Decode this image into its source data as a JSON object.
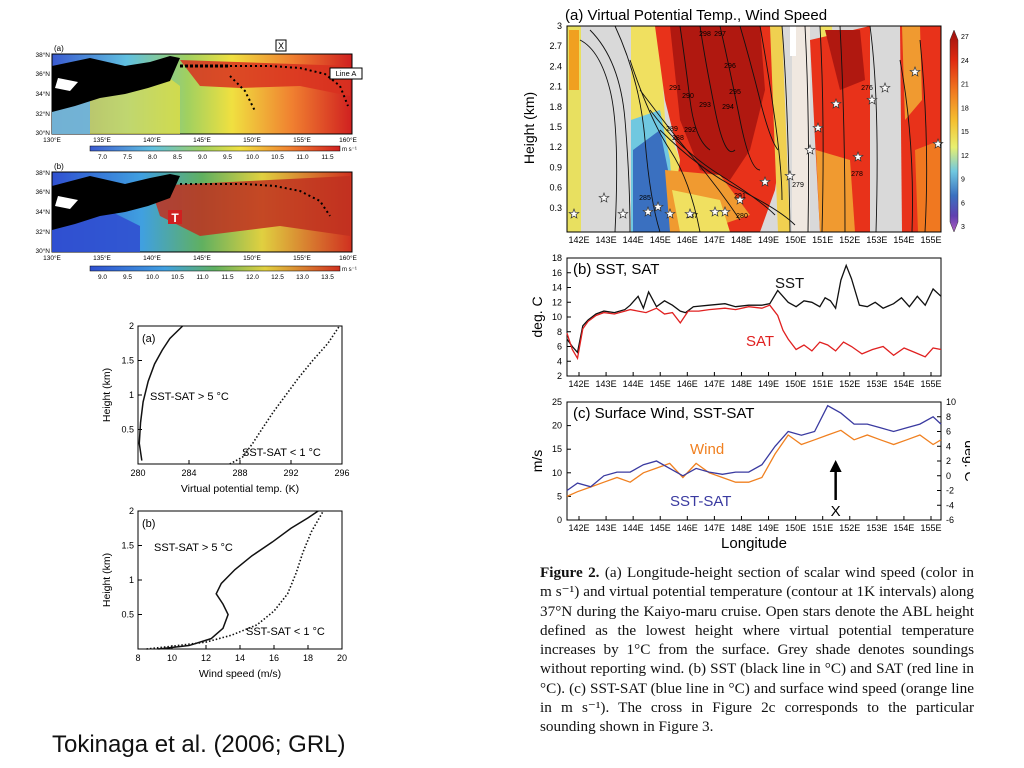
{
  "citation": "Tokinaga et al. (2006; GRL)",
  "maps": {
    "a": {
      "tag": "(a)",
      "lat_labels": [
        "38°N",
        "36°N",
        "34°N",
        "32°N",
        "30°N"
      ],
      "lon_labels": [
        "130°E",
        "135°E",
        "140°E",
        "145°E",
        "150°E",
        "155°E",
        "160°E"
      ],
      "marker_label": "X",
      "line_label": "Line A",
      "colorbar_ticks": [
        "7.0",
        "7.5",
        "8.0",
        "8.5",
        "9.0",
        "9.5",
        "10.0",
        "10.5",
        "11.0",
        "11.5"
      ],
      "colorbar_units": "m s⁻¹"
    },
    "b": {
      "tag": "(b)",
      "lat_labels": [
        "38°N",
        "36°N",
        "34°N",
        "32°N",
        "30°N"
      ],
      "lon_labels": [
        "130°E",
        "135°E",
        "140°E",
        "145°E",
        "150°E",
        "155°E",
        "160°E"
      ],
      "T_label": "T",
      "colorbar_ticks": [
        "9.0",
        "9.5",
        "10.0",
        "10.5",
        "11.0",
        "11.5",
        "12.0",
        "12.5",
        "13.0",
        "13.5"
      ],
      "colorbar_units": "m s⁻¹"
    }
  },
  "chart_data": [
    {
      "id": "profile-theta",
      "type": "line",
      "tag": "(a)",
      "xlabel": "Virtual potential temp. (K)",
      "ylabel": "Height (km)",
      "xlim": [
        280,
        296
      ],
      "ylim": [
        0,
        2
      ],
      "xticks": [
        280,
        284,
        288,
        292,
        296
      ],
      "yticks": [
        0.5,
        1,
        1.5,
        2
      ],
      "series": [
        {
          "name": "SST-SAT > 5 °C",
          "style": "solid",
          "x": [
            280.3,
            280.1,
            280.2,
            280.4,
            280.8,
            281.3,
            281.9,
            282.5,
            283.5
          ],
          "y": [
            0.05,
            0.3,
            0.6,
            0.9,
            1.2,
            1.45,
            1.65,
            1.82,
            2.0
          ]
        },
        {
          "name": "SST-SAT < 1 °C",
          "style": "dotted",
          "x": [
            287.2,
            288.2,
            289.0,
            289.7,
            290.6,
            291.6,
            292.6,
            293.7,
            294.9,
            295.8
          ],
          "y": [
            0.0,
            0.1,
            0.3,
            0.5,
            0.75,
            1.0,
            1.25,
            1.5,
            1.75,
            2.0
          ]
        }
      ]
    },
    {
      "id": "profile-wind",
      "type": "line",
      "tag": "(b)",
      "xlabel": "Wind speed (m/s)",
      "ylabel": "Height (km)",
      "xlim": [
        8,
        20
      ],
      "ylim": [
        0,
        2
      ],
      "xticks": [
        8,
        10,
        12,
        14,
        16,
        18,
        20
      ],
      "yticks": [
        0.5,
        1,
        1.5,
        2
      ],
      "series": [
        {
          "name": "SST-SAT > 5 °C",
          "style": "solid",
          "x": [
            9.2,
            11.0,
            12.3,
            13.0,
            13.3,
            13.0,
            12.6,
            12.9,
            13.7,
            14.7,
            15.9,
            17.0,
            18.0,
            18.6
          ],
          "y": [
            0.0,
            0.05,
            0.15,
            0.3,
            0.5,
            0.65,
            0.8,
            0.95,
            1.15,
            1.35,
            1.55,
            1.75,
            1.9,
            2.0
          ]
        },
        {
          "name": "SST-SAT < 1 °C",
          "style": "dotted",
          "x": [
            8.5,
            10.0,
            12.0,
            13.5,
            15.0,
            16.0,
            16.8,
            17.3,
            17.7,
            18.2,
            18.9
          ],
          "y": [
            0.0,
            0.04,
            0.1,
            0.2,
            0.35,
            0.55,
            0.8,
            1.1,
            1.4,
            1.7,
            2.0
          ]
        }
      ]
    },
    {
      "id": "section-a",
      "type": "heatmap",
      "title": "(a) Virtual Potential Temp., Wind Speed",
      "ylabel": "Height (km)",
      "yticks": [
        "0.3",
        "0.6",
        "0.9",
        "1.2",
        "1.5",
        "1.8",
        "2.1",
        "2.4",
        "2.7",
        "3"
      ],
      "xticks": [
        "142E",
        "143E",
        "144E",
        "145E",
        "146E",
        "147E",
        "148E",
        "149E",
        "150E",
        "151E",
        "152E",
        "153E",
        "154E",
        "155E"
      ],
      "colorbar_ticks": [
        "27",
        "24",
        "21",
        "18",
        "15",
        "12",
        "9",
        "6",
        "3"
      ],
      "contour_labels": [
        "298",
        "297",
        "296",
        "295",
        "294",
        "293",
        "292",
        "291",
        "290",
        "289",
        "288",
        "287",
        "285",
        "280",
        "279",
        "278",
        "276",
        "291"
      ]
    },
    {
      "id": "sst-sat",
      "type": "line",
      "title": "(b) SST, SAT",
      "ylabel": "deg. C",
      "ylim": [
        2,
        18
      ],
      "yticks": [
        "2",
        "4",
        "6",
        "8",
        "10",
        "12",
        "14",
        "16",
        "18"
      ],
      "xticks": [
        "142E",
        "143E",
        "144E",
        "145E",
        "146E",
        "147E",
        "148E",
        "149E",
        "150E",
        "151E",
        "152E",
        "153E",
        "154E",
        "155E"
      ],
      "xlim": [
        141.6,
        155.8
      ],
      "series": [
        {
          "name": "SST",
          "color": "#111111",
          "x": [
            141.6,
            141.8,
            142.0,
            142.2,
            142.4,
            142.7,
            143.0,
            143.4,
            143.8,
            144.0,
            144.3,
            144.5,
            144.7,
            145.0,
            145.3,
            145.6,
            145.9,
            146.1,
            146.4,
            147.0,
            147.6,
            148.0,
            148.5,
            149.0,
            149.3,
            149.6,
            150.0,
            150.3,
            150.6,
            150.9,
            151.2,
            151.4,
            151.6,
            151.8,
            152.0,
            152.2,
            152.4,
            152.7,
            153.0,
            153.3,
            153.6,
            154.0,
            154.3,
            154.6,
            154.9,
            155.2,
            155.5,
            155.8
          ],
          "y": [
            7.0,
            6.0,
            5.2,
            8.8,
            9.6,
            10.4,
            10.8,
            10.6,
            11.0,
            11.6,
            12.8,
            11.2,
            13.4,
            11.4,
            12.2,
            11.6,
            10.8,
            10.6,
            11.4,
            11.6,
            11.8,
            11.4,
            11.6,
            11.6,
            11.8,
            13.6,
            12.0,
            11.4,
            12.2,
            12.0,
            11.4,
            12.6,
            12.2,
            11.2,
            15.0,
            17.0,
            15.2,
            11.6,
            11.4,
            12.0,
            11.2,
            11.8,
            12.6,
            11.4,
            12.8,
            11.6,
            13.8,
            12.8
          ]
        },
        {
          "name": "SAT",
          "color": "#e02020",
          "x": [
            141.6,
            141.8,
            142.0,
            142.2,
            142.4,
            142.7,
            143.0,
            143.4,
            143.8,
            144.0,
            144.3,
            144.6,
            145.0,
            145.3,
            145.6,
            145.9,
            146.2,
            146.6,
            147.0,
            147.6,
            148.0,
            148.5,
            149.0,
            149.3,
            149.6,
            149.8,
            150.0,
            150.3,
            150.6,
            150.9,
            151.2,
            151.5,
            151.8,
            152.1,
            152.4,
            152.8,
            153.2,
            153.6,
            154.0,
            154.4,
            154.8,
            155.2,
            155.5,
            155.8
          ],
          "y": [
            7.8,
            5.6,
            4.4,
            8.4,
            9.4,
            10.2,
            10.6,
            10.4,
            10.8,
            11.0,
            10.8,
            10.6,
            11.2,
            10.4,
            10.6,
            9.2,
            10.8,
            10.8,
            11.0,
            11.2,
            11.0,
            11.4,
            11.2,
            11.6,
            10.2,
            8.2,
            7.0,
            5.6,
            6.2,
            5.4,
            6.6,
            6.2,
            5.4,
            6.6,
            6.0,
            5.0,
            5.6,
            6.0,
            4.8,
            5.8,
            5.2,
            4.6,
            5.8,
            5.6
          ]
        }
      ]
    },
    {
      "id": "wind-sstsat",
      "type": "line",
      "title": "(c) Surface Wind, SST-SAT",
      "ylabel": "m/s",
      "ylabel_right": "deg. C",
      "xlabel": "Longitude",
      "ylim": [
        0,
        25
      ],
      "ylim_right": [
        -6,
        10
      ],
      "yticks": [
        "0",
        "5",
        "10",
        "15",
        "20",
        "25"
      ],
      "yticks_right": [
        "-6",
        "-4",
        "-2",
        "0",
        "2",
        "4",
        "6",
        "8",
        "10"
      ],
      "xticks": [
        "142E",
        "143E",
        "144E",
        "145E",
        "146E",
        "147E",
        "148E",
        "149E",
        "150E",
        "151E",
        "152E",
        "153E",
        "154E",
        "155E"
      ],
      "xlim": [
        141.6,
        155.8
      ],
      "annotation": "X",
      "annotation_x": 151.8,
      "series": [
        {
          "name": "Wind",
          "color": "#f08020",
          "axis": "left",
          "x": [
            141.6,
            142.0,
            142.5,
            143.0,
            143.5,
            144.0,
            144.5,
            145.0,
            145.5,
            146.0,
            146.5,
            147.0,
            147.5,
            148.0,
            148.5,
            149.0,
            149.5,
            150.0,
            150.5,
            151.0,
            151.5,
            152.0,
            152.5,
            153.0,
            153.5,
            154.0,
            154.5,
            155.0,
            155.5,
            155.8
          ],
          "y": [
            5,
            6,
            7,
            8,
            9,
            8,
            10,
            11,
            12,
            9,
            12,
            10,
            9,
            8,
            8,
            9,
            14,
            18,
            16,
            17,
            18,
            19,
            17,
            18,
            17,
            16,
            17,
            18,
            16,
            17
          ]
        },
        {
          "name": "SST-SAT",
          "color": "#3a3aa0",
          "axis": "right",
          "x": [
            141.6,
            142.0,
            142.5,
            143.0,
            143.5,
            144.0,
            144.5,
            145.0,
            145.5,
            146.0,
            146.5,
            147.0,
            147.5,
            148.0,
            148.5,
            149.0,
            149.5,
            150.0,
            150.5,
            151.0,
            151.5,
            152.0,
            152.5,
            153.0,
            153.5,
            154.0,
            154.5,
            155.0,
            155.5,
            155.8
          ],
          "y": [
            -2,
            -1,
            -1.5,
            0,
            0.5,
            0.5,
            1.5,
            2,
            1,
            0,
            1,
            0.5,
            0.2,
            0.5,
            0.5,
            1.5,
            4,
            6,
            5.5,
            6,
            9.5,
            8.5,
            7,
            7,
            6.5,
            6,
            6.5,
            7,
            8,
            7
          ]
        }
      ]
    }
  ],
  "caption": {
    "label": "Figure 2.",
    "text": "(a) Longitude-height section of scalar wind speed (color in m s⁻¹) and virtual potential temperature (contour at 1K intervals) along 37°N during the Kaiyo-maru cruise. Open stars denote the ABL height defined as the lowest height where virtual potential temperature increases by 1°C from the surface. Grey shade denotes soundings without reporting wind. (b) SST (black line in °C) and SAT (red line in °C). (c) SST-SAT (blue line in °C) and surface wind speed (orange line in m s⁻¹). The cross in Figure 2c corresponds to the particular sounding shown in Figure 3."
  }
}
